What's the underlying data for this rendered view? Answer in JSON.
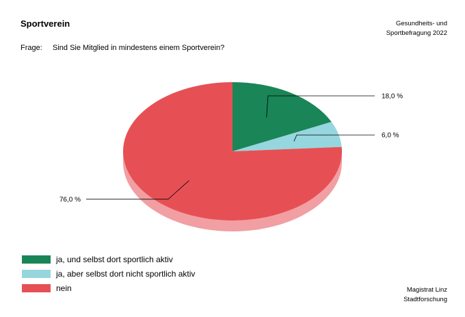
{
  "header": {
    "title": "Sportverein",
    "source_line1": "Gesundheits- und",
    "source_line2": "Sportbefragung 2022"
  },
  "question": {
    "prefix": "Frage:",
    "text": "Sind Sie Mitglied in mindestens einem Sportverein?"
  },
  "chart_data": {
    "type": "pie",
    "style": "3d",
    "title": "",
    "slices": [
      {
        "label": "ja, und selbst dort sportlich aktiv",
        "value": 18.0,
        "display": "18,0 %",
        "color": "#1a8557"
      },
      {
        "label": "ja, aber selbst dort nicht sportlich aktiv",
        "value": 6.0,
        "display": "6,0 %",
        "color": "#96d6de"
      },
      {
        "label": "nein",
        "value": 76.0,
        "display": "76,0 %",
        "color": "#e65055"
      }
    ],
    "legend_position": "bottom-left"
  },
  "footer": {
    "line1": "Magistrat Linz",
    "line2": "Stadtforschung"
  }
}
